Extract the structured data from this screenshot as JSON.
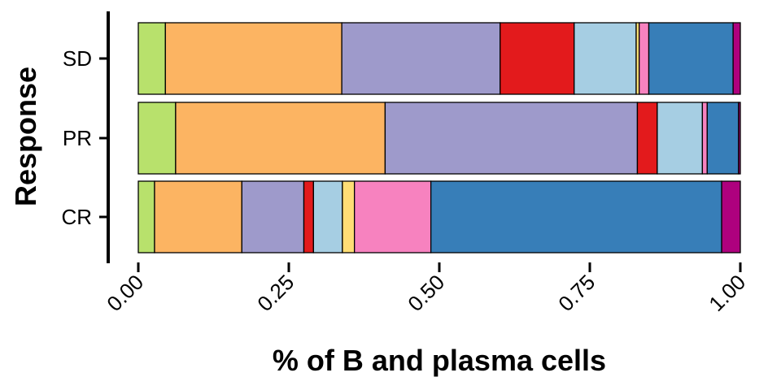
{
  "chart_data": {
    "type": "bar",
    "orientation": "horizontal",
    "stacked": true,
    "xlabel": "% of B and plasma cells",
    "ylabel": "Response",
    "xlim": [
      0,
      1
    ],
    "x_ticks": [
      "0.00",
      "0.25",
      "0.50",
      "0.75",
      "1.00"
    ],
    "x_tick_values": [
      0,
      0.25,
      0.5,
      0.75,
      1.0
    ],
    "categories": [
      "SD",
      "PR",
      "CR"
    ],
    "grid": false,
    "legend": "none",
    "series": [
      {
        "color": "#B8E16C",
        "values": [
          0.045,
          0.062,
          0.027
        ]
      },
      {
        "color": "#FCB462",
        "values": [
          0.293,
          0.348,
          0.145
        ]
      },
      {
        "color": "#9E9ACB",
        "values": [
          0.263,
          0.419,
          0.103
        ]
      },
      {
        "color": "#E31A1C",
        "values": [
          0.123,
          0.033,
          0.016
        ]
      },
      {
        "color": "#A6CEE3",
        "values": [
          0.103,
          0.075,
          0.048
        ]
      },
      {
        "color": "#FFDE75",
        "values": [
          0.005,
          0.0,
          0.02
        ]
      },
      {
        "color": "#F782BF",
        "values": [
          0.016,
          0.008,
          0.127
        ]
      },
      {
        "color": "#377EB8",
        "values": [
          0.14,
          0.052,
          0.483
        ]
      },
      {
        "color": "#AE017E",
        "values": [
          0.012,
          0.003,
          0.031
        ]
      }
    ]
  }
}
